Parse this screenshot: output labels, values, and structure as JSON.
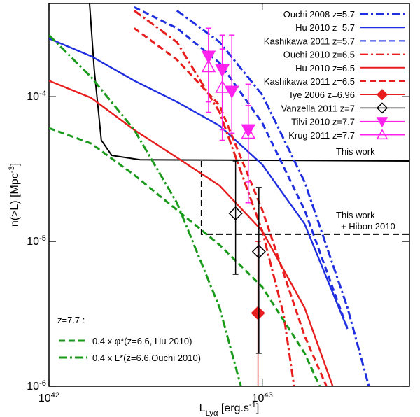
{
  "chart_data": {
    "type": "line",
    "xlabel": "L_{Lyα} [erg.s^{-1}]",
    "ylabel": "n(>L) [Mpc^{-3}]",
    "xscale": "log",
    "yscale": "log",
    "xlim": [
      1e+42,
      4.9e+43
    ],
    "ylim": [
      1e-06,
      0.00044
    ],
    "xticks": [
      {
        "value": 1e+42,
        "label": "10^{42}"
      },
      {
        "value": 1e+43,
        "label": "10^{43}"
      }
    ],
    "yticks": [
      {
        "value": 1e-06,
        "label": "10^{-6}"
      },
      {
        "value": 1e-05,
        "label": "10^{-5}"
      },
      {
        "value": 0.0001,
        "label": "10^{-4}"
      }
    ],
    "series": [
      {
        "name": "Ouchi 2008 z=5.7",
        "color": "#1f2fe0",
        "style": "dashdot",
        "legend": "upper right",
        "x": [
          3.98e+42,
          6.31e+42,
          1e+43,
          1.58e+43,
          2.51e+43,
          3.16e+43
        ],
        "values": [
          0.000393,
          0.000238,
          0.000103,
          2.58e-05,
          3.48e-06,
          1e-06
        ]
      },
      {
        "name": "Hu 2010 z=5.7",
        "color": "#1f2fe0",
        "style": "solid",
        "legend": "upper right",
        "x": [
          1e+42,
          1.58e+42,
          2.51e+42,
          3.98e+42,
          6.31e+42,
          1e+43,
          1.58e+43,
          2.51e+43
        ],
        "values": [
          0.000252,
          0.00019,
          0.000129,
          9.2e-05,
          6.3e-05,
          3.4e-05,
          1.32e-05,
          2.49e-06
        ]
      },
      {
        "name": "Kashikawa 2011 z=5.7",
        "color": "#1f2fe0",
        "style": "dashed",
        "legend": "upper right",
        "x": [
          2.51e+42,
          3.98e+42,
          6.31e+42,
          1e+43,
          1.58e+43,
          2.51e+43
        ],
        "values": [
          0.000415,
          0.000297,
          0.000171,
          6.6e-05,
          1.65e-05,
          2.49e-06
        ]
      },
      {
        "name": "Ouchi 2010 z=6.5",
        "color": "#e81e1e",
        "style": "dashdot",
        "legend": "upper right",
        "x": [
          2.51e+42,
          3.98e+42,
          6.31e+42,
          1e+43,
          1.26e+43,
          1.41e+43
        ],
        "values": [
          0.000393,
          0.000238,
          7.8e-05,
          1.18e-05,
          3.11e-06,
          1e-06
        ]
      },
      {
        "name": "Hu 2010 z=6.5",
        "color": "#e81e1e",
        "style": "solid",
        "legend": "upper right",
        "x": [
          1e+42,
          1.58e+42,
          2.51e+42,
          3.98e+42,
          6.31e+42,
          1e+43,
          1.58e+43,
          2.14e+43
        ],
        "values": [
          0.000129,
          9.8e-05,
          5.9e-05,
          3.8e-05,
          2.43e-05,
          1.18e-05,
          3.48e-06,
          1e-06
        ]
      },
      {
        "name": "Kashikawa 2011 z=6.5",
        "color": "#e81e1e",
        "style": "dashed",
        "legend": "upper right",
        "x": [
          2.51e+42,
          3.98e+42,
          6.31e+42,
          1e+43,
          1.58e+43,
          2e+43
        ],
        "values": [
          0.000297,
          0.00018,
          8.7e-05,
          1.65e-05,
          2.23e-06,
          1e-06
        ]
      },
      {
        "name": "0.4 x φ*(z=6.6, Hu 2010)",
        "color": "#1a9a1a",
        "style": "dashed",
        "legend": "lower left",
        "x": [
          1e+42,
          1.58e+42,
          2.51e+42,
          3.98e+42,
          6.31e+42,
          1e+43,
          1.58e+43,
          1.86e+43
        ],
        "values": [
          6.07e-05,
          4.74e-05,
          2.88e-05,
          1.65e-05,
          9.46e-06,
          4.85e-06,
          1.69e-06,
          1e-06
        ]
      },
      {
        "name": "0.4 x L*(z=6.6,Ouchi 2010)",
        "color": "#1a9a1a",
        "style": "dashdot",
        "legend": "lower left",
        "x": [
          1e+42,
          1.58e+42,
          2.51e+42,
          3.98e+42,
          6.31e+42,
          7.94e+42
        ],
        "values": [
          0.000266,
          0.000136,
          5.9e-05,
          1.85e-05,
          3.48e-06,
          1e-06
        ]
      }
    ],
    "points": [
      {
        "name": "Iye 2006 z=6.96",
        "color": "#e81e1e",
        "marker": "diamond",
        "filled": true,
        "x": [
          9.55e+42
        ],
        "values": [
          3.2e-06
        ],
        "upper": [
          1e-05
        ],
        "lower": [
          1e-06
        ]
      },
      {
        "name": "Vanzella 2011 z=7",
        "color": "#000000",
        "marker": "diamond",
        "filled": false,
        "x": [
          7.5e+42,
          9.64e+42
        ],
        "values": [
          1.56e-05,
          8.5e-06
        ],
        "upper": [
          3.6e-05,
          2.36e-05
        ],
        "lower": [
          5.93e-06,
          1.69e-06
        ]
      },
      {
        "name": "Tilvi 2010 z=7.7",
        "color": "#ff22ee",
        "marker": "triangle-down",
        "filled": true,
        "x": [
          5.6e+42,
          6.5e+42,
          7.2e+42,
          8.6e+42
        ],
        "values": [
          0.00019,
          0.000153,
          0.000109,
          5.9e-05
        ],
        "upper": [
          0.000297,
          0.000266,
          0.000266,
          0.000122
        ],
        "lower": [
          9.2e-05,
          5.9e-05,
          5.6e-05,
          1.85e-05
        ]
      },
      {
        "name": "Krug 2011 z=7.7",
        "color": "#ff22ee",
        "marker": "triangle-up",
        "filled": false,
        "x": [
          5.6e+42,
          6.5e+42,
          8.6e+42
        ],
        "values": [
          0.000161,
          0.000116,
          5.6e-05
        ],
        "upper": [
          0.000297,
          0.000213,
          8.7e-05
        ],
        "lower": [
          7.8e-05,
          5e-05,
          2.58e-05
        ]
      }
    ],
    "limits": [
      {
        "color": "#000000",
        "style": "solid",
        "x": [
          1.55e+42,
          1.63e+42,
          1.76e+42,
          1.97e+42,
          2.67e+42,
          4.9e+43
        ],
        "values": [
          0.00044,
          0.000153,
          5e-05,
          3.93e-05,
          3.67e-05,
          3.6e-05
        ]
      },
      {
        "color": "#000000",
        "style": "dashed",
        "x": [
          5.19e+42,
          5.19e+42,
          4.9e+43
        ],
        "values": [
          3.6e-05,
          1.12e-05,
          1.12e-05
        ]
      }
    ],
    "annotations": [
      "This work",
      "This work",
      "+ Hibon 2010",
      "z=7.7 :"
    ]
  }
}
